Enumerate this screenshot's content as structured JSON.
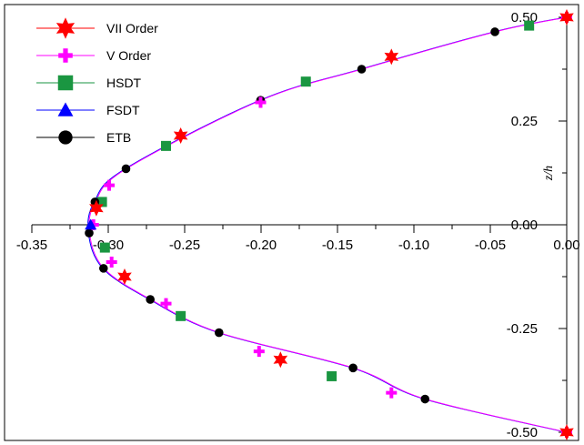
{
  "chart_data": {
    "type": "line",
    "title": "",
    "xlabel": "",
    "ylabel": "z/h",
    "xlim": [
      -0.35,
      0.0
    ],
    "ylim": [
      -0.5,
      0.5
    ],
    "x_ticks": [
      "-0.35",
      "-0.30",
      "-0.25",
      "-0.20",
      "-0.15",
      "-0.10",
      "-0.05",
      "0.00"
    ],
    "y_ticks": [
      "0.50",
      "0.25",
      "0.00",
      "-0.25",
      "-0.50"
    ],
    "grid": false,
    "legend_position": "top-left",
    "series": [
      {
        "name": "VII Order",
        "color": "#ff0000",
        "marker": "star6",
        "x": [
          0.0,
          -0.1147,
          -0.2526,
          -0.3078,
          -0.2893,
          -0.1873,
          0.0
        ],
        "y": [
          0.5,
          0.405,
          0.215,
          0.04,
          -0.125,
          -0.325,
          -0.5
        ]
      },
      {
        "name": "V Order",
        "color": "#ff00ff",
        "marker": "plus",
        "x": [
          0.0,
          -0.2003,
          -0.2994,
          -0.3097,
          -0.2978,
          -0.2622,
          -0.2013,
          -0.1147,
          0.0
        ],
        "y": [
          0.5,
          0.295,
          0.095,
          0.0,
          -0.09,
          -0.19,
          -0.305,
          -0.405,
          -0.5
        ],
        "show_in_legend": true
      },
      {
        "name": "HSDT",
        "color": "#1a9641",
        "marker": "square",
        "x": [
          -0.0246,
          -0.1707,
          -0.2622,
          -0.3041,
          -0.3022,
          -0.2526,
          -0.1538
        ],
        "y": [
          0.48,
          0.345,
          0.19,
          0.055,
          -0.055,
          -0.22,
          -0.365
        ]
      },
      {
        "name": "FSDT",
        "color": "#0000ff",
        "marker": "triangle",
        "x": [
          -0.3115
        ],
        "y": [
          0.0
        ]
      },
      {
        "name": "ETB",
        "color": "#000000",
        "marker": "circle",
        "x": [
          -0.047,
          -0.1342,
          -0.2003,
          -0.2884,
          -0.3087,
          -0.3125,
          -0.3031,
          -0.2725,
          -0.2275,
          -0.1398,
          -0.0927
        ],
        "y": [
          0.465,
          0.375,
          0.3,
          0.135,
          0.055,
          -0.02,
          -0.105,
          -0.18,
          -0.26,
          -0.345,
          -0.42
        ]
      }
    ],
    "curve_samples": [
      {
        "color": "#0000ff"
      },
      {
        "color": "#ff00ff"
      }
    ]
  }
}
